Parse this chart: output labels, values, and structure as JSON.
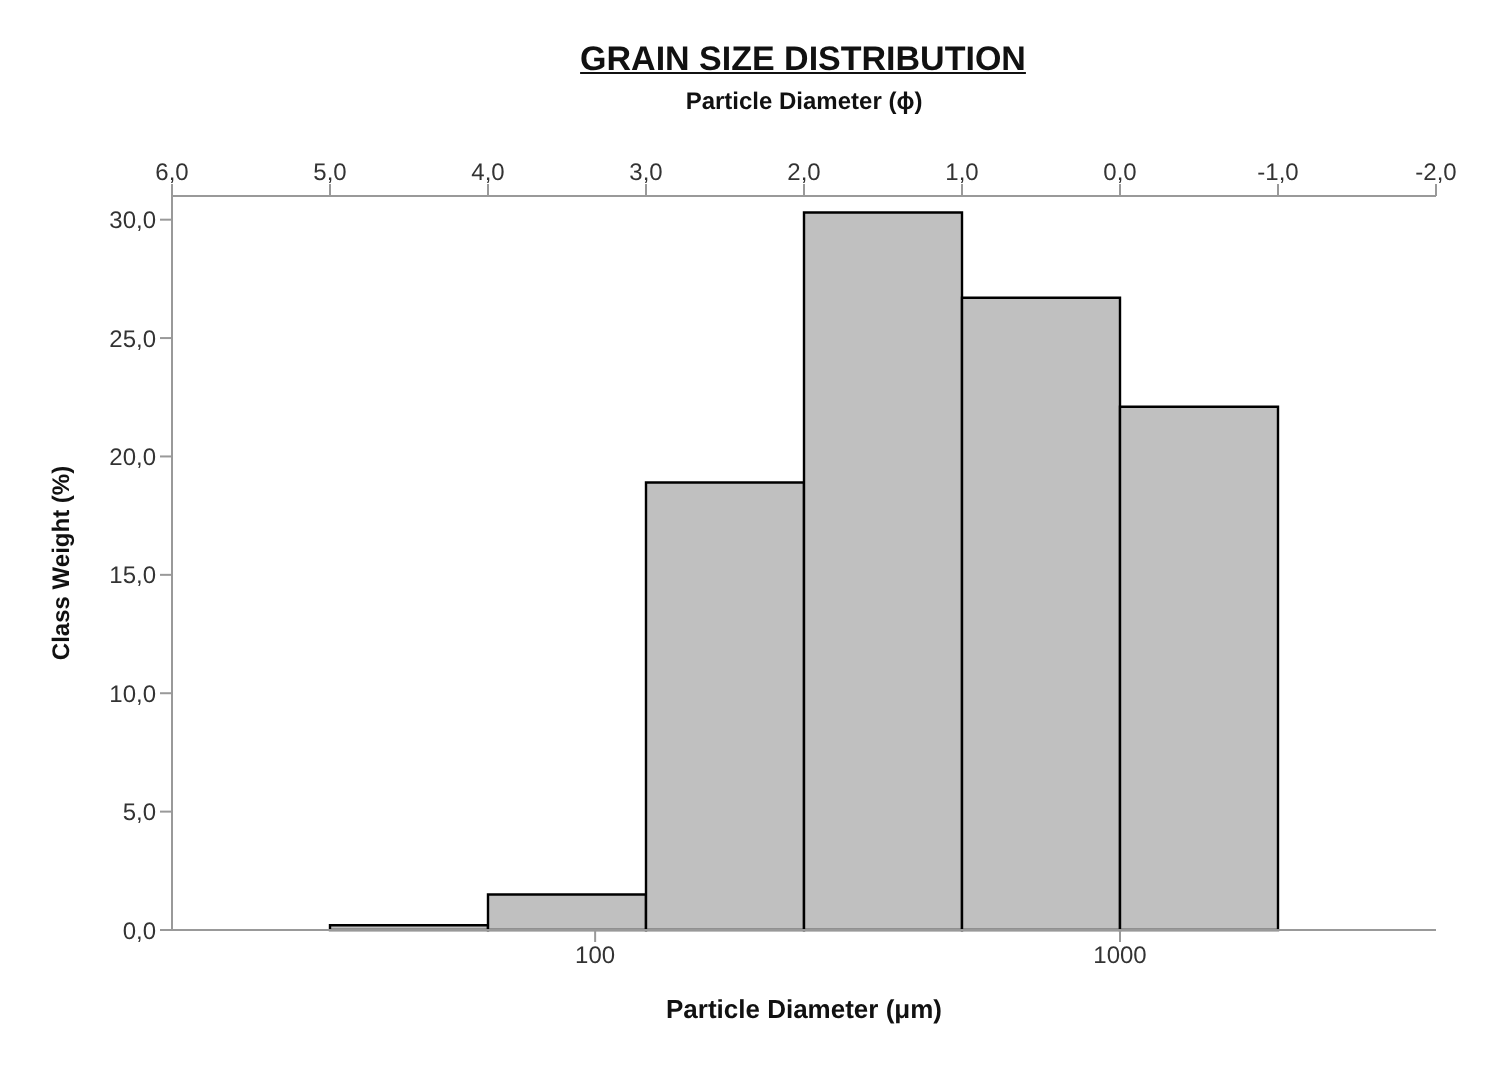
{
  "chart_data": {
    "type": "histogram",
    "title": "GRAIN SIZE DISTRIBUTION",
    "xlabel": "Particle Diameter (μm)",
    "x2label": "Particle Diameter (ϕ)",
    "ylabel": "Class Weight (%)",
    "bins": [
      31.25,
      62.5,
      125,
      250,
      500,
      1000,
      2000
    ],
    "values": [
      0.2,
      1.5,
      18.9,
      30.3,
      26.7,
      22.1
    ],
    "color": "#c0c0c0",
    "log": "x",
    "xlim": [
      15.625,
      4000
    ],
    "xticks": [
      100,
      1000
    ],
    "x2lim": [
      6,
      -2
    ],
    "x2ticks": [
      {
        "value": 6,
        "label": "6,0"
      },
      {
        "value": 5,
        "label": "5,0"
      },
      {
        "value": 4,
        "label": "4,0"
      },
      {
        "value": 3,
        "label": "3,0"
      },
      {
        "value": 2,
        "label": "2,0"
      },
      {
        "value": 1,
        "label": "1,0"
      },
      {
        "value": 0,
        "label": "0,0"
      },
      {
        "value": -1,
        "label": "-1,0"
      },
      {
        "value": -2,
        "label": "-2,0"
      }
    ],
    "ylim": [
      0,
      31
    ],
    "yticks": [
      {
        "value": 0,
        "label": "0,0"
      },
      {
        "value": 5,
        "label": "5,0"
      },
      {
        "value": 10,
        "label": "10,0"
      },
      {
        "value": 15,
        "label": "15,0"
      },
      {
        "value": 20,
        "label": "20,0"
      },
      {
        "value": 25,
        "label": "25,0"
      },
      {
        "value": 30,
        "label": "30,0"
      }
    ]
  }
}
